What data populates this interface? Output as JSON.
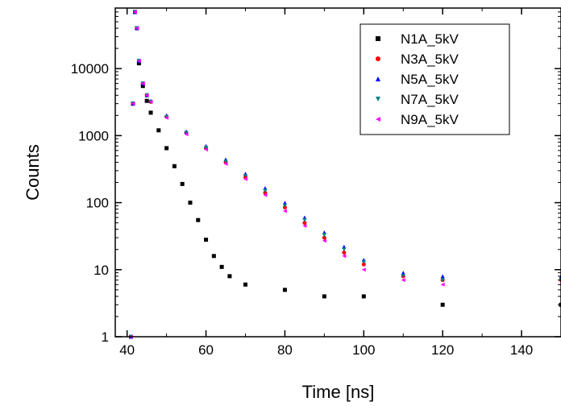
{
  "chart_data": {
    "type": "scatter",
    "title": "",
    "xlabel": "Time [ns]",
    "ylabel": "Counts",
    "xlim": [
      37,
      150
    ],
    "ylim": [
      1,
      80000
    ],
    "yscale": "log",
    "grid": false,
    "legend_position": "top-right",
    "x_ticks": [
      40,
      60,
      80,
      100,
      120,
      140
    ],
    "x_tick_labels": [
      "40",
      "60",
      "80",
      "100",
      "120",
      "140"
    ],
    "y_ticks": [
      1,
      10,
      100,
      1000,
      10000
    ],
    "y_tick_labels": [
      "1",
      "10",
      "100",
      "1000",
      "10000"
    ],
    "series": [
      {
        "name": "N1A_5kV",
        "color": "#000000",
        "marker": "square",
        "x": [
          41,
          41.5,
          42,
          42.5,
          43,
          44,
          45,
          46,
          48,
          50,
          52,
          54,
          56,
          58,
          60,
          62,
          64,
          66,
          70,
          80,
          90,
          100,
          120,
          150
        ],
        "y": [
          1,
          3000,
          70000,
          40000,
          12000,
          5500,
          3300,
          2200,
          1200,
          650,
          350,
          190,
          100,
          55,
          28,
          16,
          11,
          8,
          6,
          5,
          4,
          4,
          3,
          3
        ]
      },
      {
        "name": "N3A_5kV",
        "color": "#ff0000",
        "marker": "circle",
        "x": [
          41,
          41.5,
          42,
          42.5,
          43,
          44,
          45,
          46,
          50,
          55,
          60,
          65,
          70,
          75,
          80,
          85,
          90,
          95,
          100,
          110,
          120,
          150
        ],
        "y": [
          1,
          3000,
          70000,
          40000,
          13000,
          6000,
          4000,
          3200,
          1900,
          1100,
          650,
          400,
          240,
          140,
          85,
          50,
          30,
          18,
          12,
          8,
          7,
          7
        ]
      },
      {
        "name": "N5A_5kV",
        "color": "#0000ff",
        "marker": "triangle-up",
        "x": [
          41,
          41.5,
          42,
          42.5,
          43,
          44,
          45,
          46,
          50,
          55,
          60,
          65,
          70,
          75,
          80,
          85,
          90,
          95,
          100,
          110,
          120,
          150
        ],
        "y": [
          1,
          3000,
          70000,
          40000,
          13000,
          6000,
          4000,
          3300,
          2000,
          1150,
          700,
          440,
          270,
          165,
          100,
          60,
          36,
          22,
          14,
          9,
          8,
          8
        ]
      },
      {
        "name": "N7A_5kV",
        "color": "#008080",
        "marker": "triangle-down",
        "x": [
          41,
          41.5,
          42,
          42.5,
          43,
          44,
          45,
          46,
          50,
          55,
          60,
          65,
          70,
          75,
          80,
          85,
          90,
          95,
          100,
          110,
          120,
          150
        ],
        "y": [
          1,
          3000,
          70000,
          40000,
          13000,
          6000,
          4000,
          3200,
          1900,
          1100,
          660,
          410,
          250,
          150,
          90,
          55,
          33,
          20,
          13,
          8,
          7,
          7
        ]
      },
      {
        "name": "N9A_5kV",
        "color": "#ff00ff",
        "marker": "triangle-left",
        "x": [
          41,
          41.5,
          42,
          42.5,
          43,
          44,
          45,
          46,
          50,
          55,
          60,
          65,
          70,
          75,
          80,
          85,
          90,
          95,
          100,
          110,
          120,
          150
        ],
        "y": [
          1,
          3000,
          70000,
          40000,
          13000,
          6000,
          4000,
          3200,
          1850,
          1050,
          620,
          380,
          225,
          130,
          75,
          45,
          27,
          16,
          10,
          7,
          6,
          6
        ]
      }
    ]
  }
}
